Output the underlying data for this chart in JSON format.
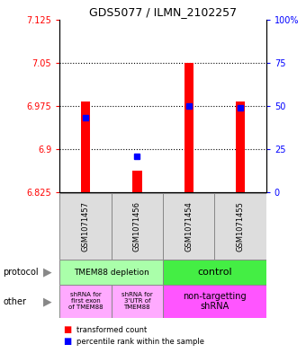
{
  "title": "GDS5077 / ILMN_2102257",
  "samples": [
    "GSM1071457",
    "GSM1071456",
    "GSM1071454",
    "GSM1071455"
  ],
  "red_values": [
    6.982,
    6.863,
    7.05,
    6.982
  ],
  "blue_values": [
    6.955,
    6.888,
    6.975,
    6.972
  ],
  "ymin": 6.825,
  "ymax": 7.125,
  "yticks_left": [
    6.825,
    6.9,
    6.975,
    7.05,
    7.125
  ],
  "yticks_right": [
    0,
    25,
    50,
    75,
    100
  ],
  "yticks_right_labels": [
    "0",
    "25",
    "50",
    "75",
    "100%"
  ],
  "bar_base": 6.825,
  "bar_width": 0.18,
  "protocol_depletion_color": "#aaffaa",
  "protocol_control_color": "#44ee44",
  "other_shrna_color": "#ffaaff",
  "other_nontargetting_color": "#ff55ff",
  "sample_box_color": "#dddddd",
  "legend_red": "transformed count",
  "legend_blue": "percentile rank within the sample",
  "title_fontsize": 9,
  "tick_fontsize": 7,
  "sample_fontsize": 6,
  "table_fontsize": 6.5,
  "label_fontsize": 7
}
